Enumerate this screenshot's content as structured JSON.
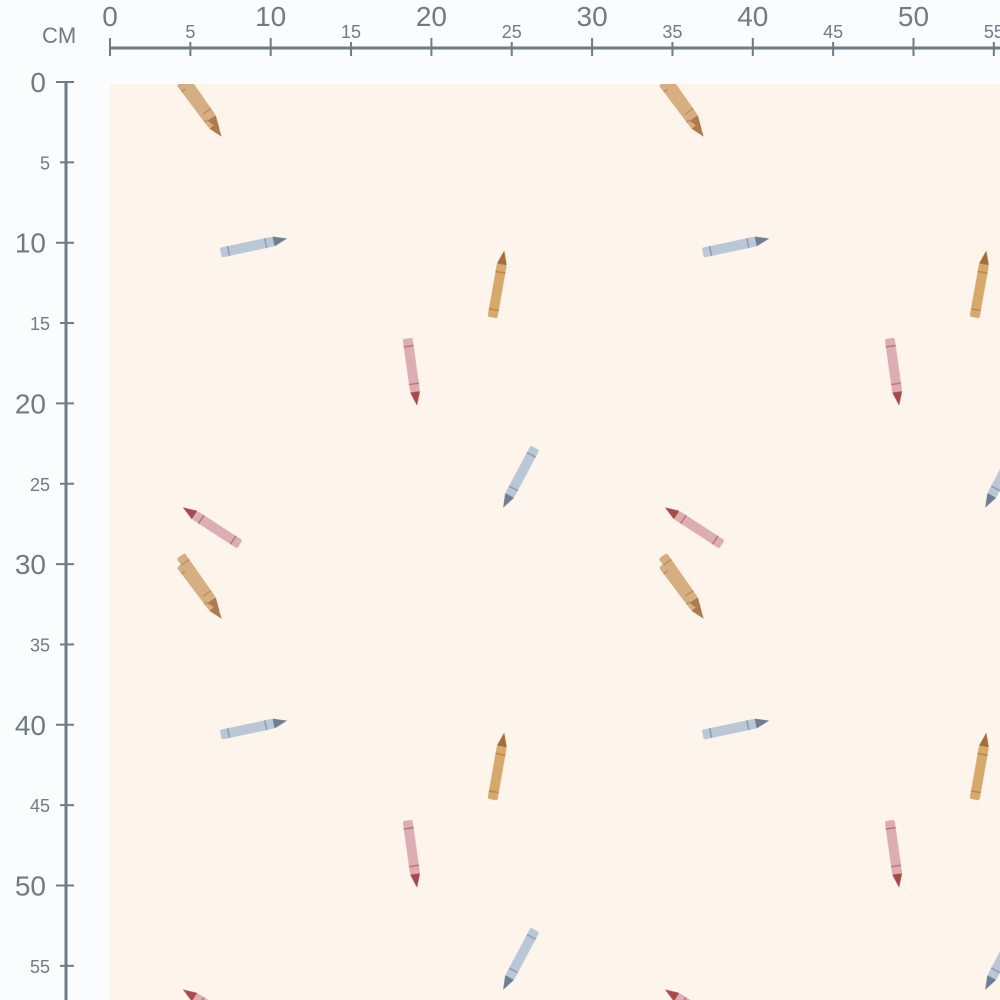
{
  "ruler": {
    "unit": "CM",
    "horizontal_labels": [
      "0",
      "5",
      "10",
      "15",
      "20",
      "25",
      "30",
      "35",
      "40",
      "45",
      "50",
      "55"
    ],
    "vertical_labels": [
      "0",
      "5",
      "10",
      "15",
      "20",
      "25",
      "30",
      "35",
      "40",
      "45",
      "50",
      "55"
    ],
    "color": "#6f7b85"
  },
  "fabric": {
    "background": "#fdf5ec",
    "pattern": "crayons",
    "repeat_cm": 30,
    "crayon_colors": {
      "tan": "#d6ae82",
      "blue": "#b9c7d6",
      "ochre": "#d7a86c",
      "pink": "#dcaeb3",
      "tip_tan": "#b07a4a",
      "tip_blue": "#6e7f93",
      "tip_ochre": "#a86c38",
      "tip_pink": "#a84a4a"
    }
  }
}
